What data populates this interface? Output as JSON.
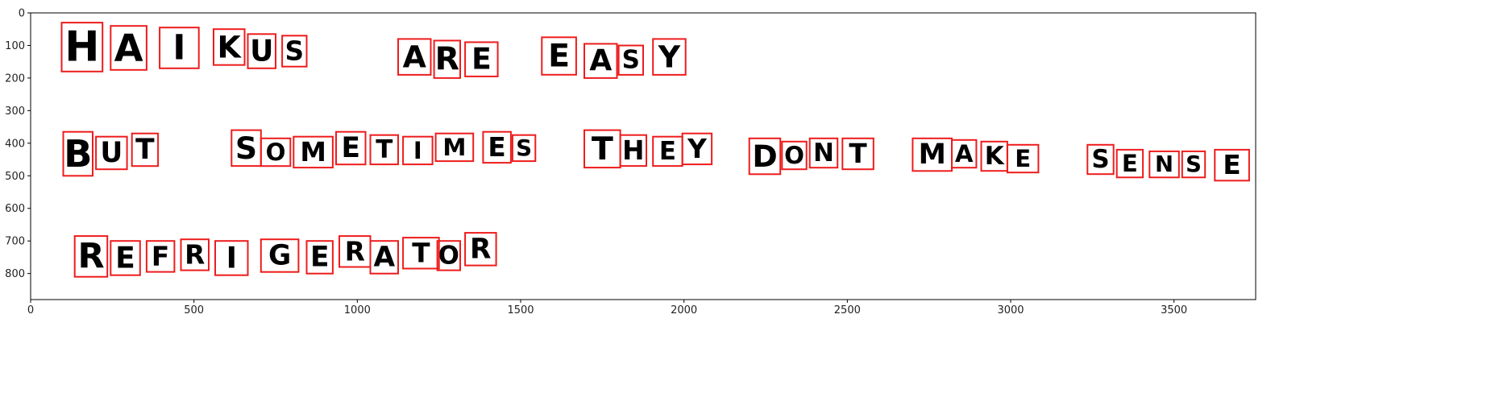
{
  "chart_data": {
    "type": "image",
    "xlim": [
      0,
      3750
    ],
    "ylim": [
      880,
      0
    ],
    "xticks": [
      0,
      500,
      1000,
      1500,
      2000,
      2500,
      3000,
      3500
    ],
    "yticks": [
      0,
      100,
      200,
      300,
      400,
      500,
      600,
      700,
      800
    ],
    "box_color": "#ee1c1c",
    "boxes": [
      {
        "label": "H",
        "x0": 95,
        "y0": 30,
        "x1": 220,
        "y1": 180
      },
      {
        "label": "A",
        "x0": 245,
        "y0": 40,
        "x1": 355,
        "y1": 175
      },
      {
        "label": "I",
        "x0": 395,
        "y0": 45,
        "x1": 515,
        "y1": 170
      },
      {
        "label": "K",
        "x0": 560,
        "y0": 50,
        "x1": 655,
        "y1": 160
      },
      {
        "label": "U",
        "x0": 665,
        "y0": 65,
        "x1": 750,
        "y1": 170
      },
      {
        "label": "S",
        "x0": 770,
        "y0": 70,
        "x1": 845,
        "y1": 165
      },
      {
        "label": "A",
        "x0": 1125,
        "y0": 80,
        "x1": 1225,
        "y1": 190
      },
      {
        "label": "R",
        "x0": 1235,
        "y0": 85,
        "x1": 1315,
        "y1": 200
      },
      {
        "label": "E",
        "x0": 1330,
        "y0": 90,
        "x1": 1430,
        "y1": 195
      },
      {
        "label": "E",
        "x0": 1565,
        "y0": 75,
        "x1": 1670,
        "y1": 190
      },
      {
        "label": "A",
        "x0": 1695,
        "y0": 95,
        "x1": 1795,
        "y1": 200
      },
      {
        "label": "S",
        "x0": 1800,
        "y0": 100,
        "x1": 1875,
        "y1": 190
      },
      {
        "label": "Y",
        "x0": 1905,
        "y0": 80,
        "x1": 2005,
        "y1": 190
      },
      {
        "label": "B",
        "x0": 100,
        "y0": 365,
        "x1": 190,
        "y1": 500
      },
      {
        "label": "U",
        "x0": 200,
        "y0": 380,
        "x1": 295,
        "y1": 480
      },
      {
        "label": "T",
        "x0": 310,
        "y0": 370,
        "x1": 390,
        "y1": 470
      },
      {
        "label": "S",
        "x0": 615,
        "y0": 360,
        "x1": 705,
        "y1": 470
      },
      {
        "label": "O",
        "x0": 705,
        "y0": 385,
        "x1": 795,
        "y1": 470
      },
      {
        "label": "M",
        "x0": 805,
        "y0": 380,
        "x1": 925,
        "y1": 475
      },
      {
        "label": "E",
        "x0": 935,
        "y0": 365,
        "x1": 1025,
        "y1": 465
      },
      {
        "label": "T",
        "x0": 1040,
        "y0": 375,
        "x1": 1125,
        "y1": 465
      },
      {
        "label": "I",
        "x0": 1140,
        "y0": 380,
        "x1": 1230,
        "y1": 465
      },
      {
        "label": "M",
        "x0": 1240,
        "y0": 370,
        "x1": 1355,
        "y1": 455
      },
      {
        "label": "E",
        "x0": 1385,
        "y0": 365,
        "x1": 1470,
        "y1": 460
      },
      {
        "label": "S",
        "x0": 1475,
        "y0": 375,
        "x1": 1545,
        "y1": 455
      },
      {
        "label": "T",
        "x0": 1695,
        "y0": 360,
        "x1": 1805,
        "y1": 475
      },
      {
        "label": "H",
        "x0": 1805,
        "y0": 375,
        "x1": 1885,
        "y1": 470
      },
      {
        "label": "E",
        "x0": 1905,
        "y0": 380,
        "x1": 1995,
        "y1": 470
      },
      {
        "label": "Y",
        "x0": 1995,
        "y0": 370,
        "x1": 2085,
        "y1": 465
      },
      {
        "label": "D",
        "x0": 2200,
        "y0": 385,
        "x1": 2295,
        "y1": 495
      },
      {
        "label": "O",
        "x0": 2300,
        "y0": 395,
        "x1": 2375,
        "y1": 480
      },
      {
        "label": "N",
        "x0": 2385,
        "y0": 385,
        "x1": 2470,
        "y1": 475
      },
      {
        "label": "T",
        "x0": 2485,
        "y0": 385,
        "x1": 2580,
        "y1": 480
      },
      {
        "label": "M",
        "x0": 2700,
        "y0": 385,
        "x1": 2820,
        "y1": 485
      },
      {
        "label": "A",
        "x0": 2820,
        "y0": 390,
        "x1": 2895,
        "y1": 475
      },
      {
        "label": "K",
        "x0": 2910,
        "y0": 395,
        "x1": 2990,
        "y1": 485
      },
      {
        "label": "E",
        "x0": 2990,
        "y0": 405,
        "x1": 3085,
        "y1": 490
      },
      {
        "label": "S",
        "x0": 3235,
        "y0": 405,
        "x1": 3315,
        "y1": 495
      },
      {
        "label": "E",
        "x0": 3325,
        "y0": 420,
        "x1": 3405,
        "y1": 505
      },
      {
        "label": "N",
        "x0": 3425,
        "y0": 425,
        "x1": 3515,
        "y1": 505
      },
      {
        "label": "S",
        "x0": 3525,
        "y0": 425,
        "x1": 3595,
        "y1": 505
      },
      {
        "label": "E",
        "x0": 3625,
        "y0": 420,
        "x1": 3730,
        "y1": 515
      },
      {
        "label": "R",
        "x0": 135,
        "y0": 685,
        "x1": 235,
        "y1": 810
      },
      {
        "label": "E",
        "x0": 245,
        "y0": 700,
        "x1": 335,
        "y1": 805
      },
      {
        "label": "F",
        "x0": 355,
        "y0": 700,
        "x1": 440,
        "y1": 795
      },
      {
        "label": "R",
        "x0": 460,
        "y0": 695,
        "x1": 545,
        "y1": 790
      },
      {
        "label": "I",
        "x0": 565,
        "y0": 700,
        "x1": 665,
        "y1": 805
      },
      {
        "label": "G",
        "x0": 705,
        "y0": 695,
        "x1": 820,
        "y1": 795
      },
      {
        "label": "E",
        "x0": 845,
        "y0": 700,
        "x1": 925,
        "y1": 800
      },
      {
        "label": "R",
        "x0": 945,
        "y0": 685,
        "x1": 1040,
        "y1": 780
      },
      {
        "label": "A",
        "x0": 1040,
        "y0": 700,
        "x1": 1125,
        "y1": 800
      },
      {
        "label": "T",
        "x0": 1140,
        "y0": 690,
        "x1": 1250,
        "y1": 785
      },
      {
        "label": "O",
        "x0": 1245,
        "y0": 700,
        "x1": 1315,
        "y1": 790
      },
      {
        "label": "R",
        "x0": 1330,
        "y0": 675,
        "x1": 1425,
        "y1": 775
      }
    ]
  }
}
